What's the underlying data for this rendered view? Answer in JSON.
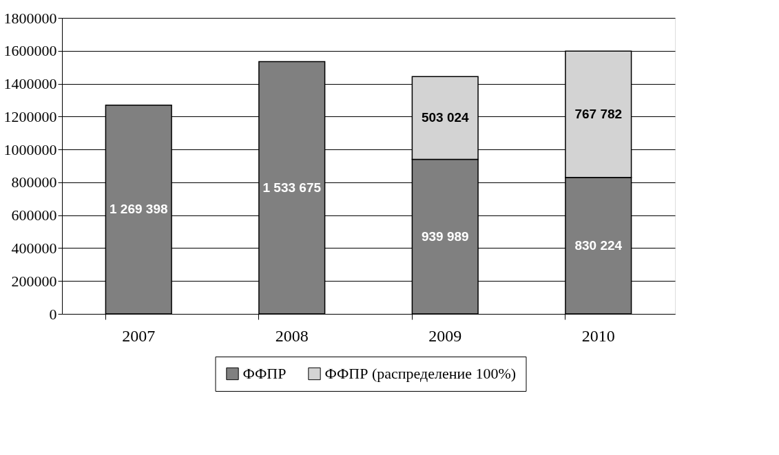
{
  "chart_data": {
    "type": "bar",
    "stacked": true,
    "categories": [
      "2007",
      "2008",
      "2009",
      "2010"
    ],
    "series": [
      {
        "name": "ФФПР",
        "color": "#808080",
        "values": [
          1269398,
          1533675,
          939989,
          830224
        ],
        "value_labels": [
          "1 269 398",
          "1 533 675",
          "939 989",
          "830 224"
        ]
      },
      {
        "name": "ФФПР (распределение 100%)",
        "color": "#d3d3d3",
        "values": [
          null,
          null,
          503024,
          767782
        ],
        "value_labels": [
          null,
          null,
          "503 024",
          "767 782"
        ]
      }
    ],
    "ylim": [
      0,
      1800000
    ],
    "yticks": [
      0,
      200000,
      400000,
      600000,
      800000,
      1000000,
      1200000,
      1400000,
      1600000,
      1800000
    ],
    "grid": "y",
    "legend": "bottom"
  }
}
